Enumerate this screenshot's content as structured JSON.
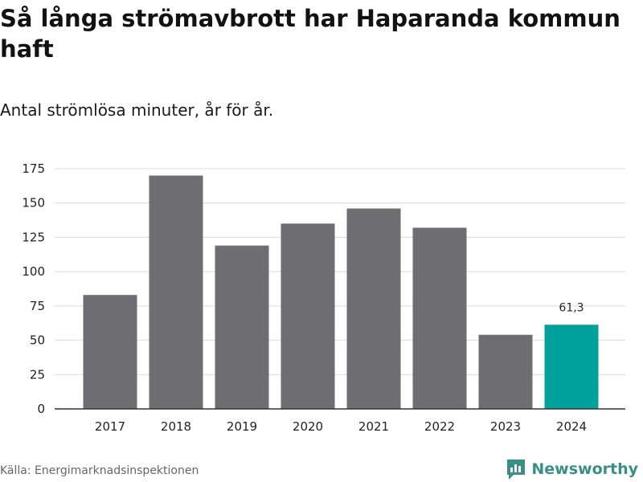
{
  "title": "Så långa strömavbrott har Haparanda kommun haft",
  "subtitle": "Antal strömlösa minuter, år för år.",
  "source": "Källa: Energimarknadsinspektionen",
  "brand": "Newsworthy",
  "icon": "newsworthy-logo-icon",
  "colors": {
    "bar": "#6e6d72",
    "highlight": "#00a19a",
    "grid": "#d9d9d9",
    "axis": "#333333",
    "brand": "#3a8f85"
  },
  "chart_data": {
    "type": "bar",
    "title": "Så långa strömavbrott har Haparanda kommun haft",
    "subtitle": "Antal strömlösa minuter, år för år.",
    "categories": [
      "2017",
      "2018",
      "2019",
      "2020",
      "2021",
      "2022",
      "2023",
      "2024"
    ],
    "values": [
      83,
      170,
      119,
      135,
      146,
      132,
      54,
      61.3
    ],
    "highlight_index": 7,
    "data_labels": [
      {
        "index": 7,
        "text": "61,3"
      }
    ],
    "yticks": [
      0,
      25,
      50,
      75,
      100,
      125,
      150,
      175
    ],
    "ytick_labels": [
      "0",
      "25",
      "50",
      "75",
      "100",
      "125",
      "150",
      "175"
    ],
    "ylim": [
      0,
      175
    ],
    "xlabel": "",
    "ylabel": "",
    "grid": true
  }
}
